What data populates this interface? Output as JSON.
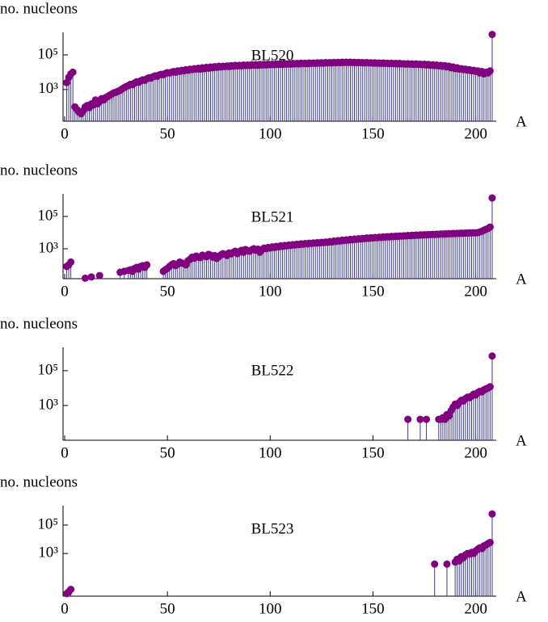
{
  "chart_data": [
    {
      "type": "stem",
      "title": "BL520",
      "y_label": "no. nucleons",
      "x_label": "A",
      "log_y": true,
      "color": "#800080",
      "stem_color": "#3a3a9a",
      "xlim": [
        0,
        210
      ],
      "xticks": [
        0,
        50,
        100,
        150,
        200
      ],
      "ylim": [
        15,
        2000000
      ],
      "yticks": [
        {
          "value": 1000,
          "label": "10³"
        },
        {
          "value": 100000,
          "label": "10⁵"
        }
      ],
      "x": [
        1,
        2,
        3,
        4,
        5,
        6,
        7,
        8,
        9,
        10,
        11,
        12,
        13,
        14,
        15,
        16,
        17,
        18,
        19,
        20,
        21,
        22,
        23,
        24,
        25,
        26,
        27,
        28,
        29,
        30,
        31,
        32,
        33,
        34,
        35,
        36,
        37,
        38,
        39,
        40,
        41,
        42,
        43,
        44,
        45,
        46,
        47,
        48,
        49,
        50,
        51,
        52,
        53,
        54,
        55,
        56,
        57,
        58,
        59,
        60,
        61,
        62,
        63,
        64,
        65,
        66,
        67,
        68,
        69,
        70,
        71,
        72,
        73,
        74,
        75,
        76,
        77,
        78,
        79,
        80,
        81,
        82,
        83,
        84,
        85,
        86,
        87,
        88,
        89,
        90,
        91,
        92,
        93,
        94,
        95,
        96,
        97,
        98,
        99,
        100,
        101,
        102,
        103,
        104,
        105,
        106,
        107,
        108,
        109,
        110,
        111,
        112,
        113,
        114,
        115,
        116,
        117,
        118,
        119,
        120,
        121,
        122,
        123,
        124,
        125,
        126,
        127,
        128,
        129,
        130,
        131,
        132,
        133,
        134,
        135,
        136,
        137,
        138,
        139,
        140,
        141,
        142,
        143,
        144,
        145,
        146,
        147,
        148,
        149,
        150,
        151,
        152,
        153,
        154,
        155,
        156,
        157,
        158,
        159,
        160,
        161,
        162,
        163,
        164,
        165,
        166,
        167,
        168,
        169,
        170,
        171,
        172,
        173,
        174,
        175,
        176,
        177,
        178,
        179,
        180,
        181,
        182,
        183,
        184,
        185,
        186,
        187,
        188,
        189,
        190,
        191,
        192,
        193,
        194,
        195,
        196,
        197,
        198,
        199,
        200,
        201,
        202,
        203,
        204,
        205,
        206,
        207,
        208
      ],
      "values": [
        2500,
        5000,
        8000,
        10000,
        100,
        70,
        50,
        40,
        60,
        100,
        120,
        90,
        150,
        130,
        250,
        150,
        200,
        300,
        250,
        350,
        400,
        480,
        550,
        650,
        700,
        800,
        900,
        1100,
        1300,
        1500,
        1700,
        2000,
        1900,
        2400,
        2800,
        2600,
        3200,
        3600,
        3400,
        4200,
        4800,
        4500,
        5500,
        6200,
        5800,
        7000,
        7600,
        7200,
        8500,
        9500,
        9000,
        10000,
        11000,
        10000,
        12000,
        11000,
        13000,
        12000,
        14000,
        13000,
        15000,
        14000,
        16000,
        15000,
        17000,
        15000,
        18000,
        16000,
        19000,
        17000,
        20000,
        18000,
        21000,
        19000,
        22000,
        20000,
        22000,
        21000,
        23000,
        21000,
        24000,
        22000,
        25000,
        23000,
        25000,
        23000,
        26000,
        24000,
        26000,
        24000,
        27000,
        25000,
        27000,
        25000,
        28000,
        26000,
        28000,
        26000,
        29000,
        27000,
        29000,
        27000,
        30000,
        28000,
        30000,
        28000,
        31000,
        29000,
        31000,
        29000,
        32000,
        30000,
        32000,
        30000,
        33000,
        31000,
        33000,
        31000,
        34000,
        32000,
        34000,
        32000,
        35000,
        33000,
        35000,
        33000,
        36000,
        34000,
        36000,
        34000,
        37000,
        35000,
        37000,
        35000,
        38000,
        36000,
        38000,
        36000,
        38000,
        36000,
        37000,
        35000,
        37000,
        35000,
        36000,
        34000,
        36000,
        34000,
        35000,
        33000,
        35000,
        33000,
        34000,
        32000,
        34000,
        32000,
        33000,
        31000,
        33000,
        31000,
        32000,
        30000,
        32000,
        30000,
        31000,
        29000,
        31000,
        29000,
        30000,
        28000,
        30000,
        28000,
        29000,
        27000,
        29000,
        26000,
        28000,
        25000,
        27000,
        24000,
        26000,
        23000,
        25000,
        22000,
        24000,
        20000,
        22000,
        18000,
        20000,
        16000,
        18000,
        15000,
        16000,
        14000,
        15000,
        13000,
        14000,
        12000,
        13000,
        11000,
        12000,
        9000,
        11000,
        8000,
        10000,
        9000,
        12000,
        1500000
      ]
    },
    {
      "type": "stem",
      "title": "BL521",
      "y_label": "no. nucleons",
      "x_label": "A",
      "log_y": true,
      "color": "#800080",
      "stem_color": "#3a3a9a",
      "xlim": [
        0,
        210
      ],
      "xticks": [
        0,
        50,
        100,
        150,
        200
      ],
      "ylim": [
        14,
        2500000
      ],
      "yticks": [
        {
          "value": 1000,
          "label": "10³"
        },
        {
          "value": 100000,
          "label": "10⁵"
        }
      ],
      "x": [
        1,
        2,
        3,
        10,
        13,
        17,
        27,
        29,
        31,
        32,
        33,
        34,
        35,
        36,
        37,
        38,
        39,
        40,
        48,
        49,
        50,
        51,
        52,
        53,
        54,
        55,
        56,
        57,
        58,
        59,
        60,
        61,
        62,
        63,
        64,
        65,
        66,
        67,
        68,
        69,
        70,
        71,
        72,
        73,
        74,
        75,
        76,
        77,
        78,
        79,
        80,
        81,
        82,
        83,
        84,
        85,
        86,
        87,
        88,
        89,
        90,
        91,
        92,
        93,
        94,
        95,
        96,
        97,
        98,
        99,
        100,
        101,
        102,
        103,
        104,
        105,
        106,
        107,
        108,
        109,
        110,
        111,
        112,
        113,
        114,
        115,
        116,
        117,
        118,
        119,
        120,
        121,
        122,
        123,
        124,
        125,
        126,
        127,
        128,
        129,
        130,
        131,
        132,
        133,
        134,
        135,
        136,
        137,
        138,
        139,
        140,
        141,
        142,
        143,
        144,
        145,
        146,
        147,
        148,
        149,
        150,
        151,
        152,
        153,
        154,
        155,
        156,
        157,
        158,
        159,
        160,
        161,
        162,
        163,
        164,
        165,
        166,
        167,
        168,
        169,
        170,
        171,
        172,
        173,
        174,
        175,
        176,
        177,
        178,
        179,
        180,
        181,
        182,
        183,
        184,
        185,
        186,
        187,
        188,
        189,
        190,
        191,
        192,
        193,
        194,
        195,
        196,
        197,
        198,
        199,
        200,
        201,
        202,
        203,
        204,
        205,
        206,
        207,
        208
      ],
      "values": [
        80,
        100,
        150,
        15,
        18,
        22,
        35,
        40,
        45,
        50,
        40,
        60,
        70,
        55,
        80,
        90,
        70,
        100,
        40,
        50,
        60,
        80,
        100,
        120,
        90,
        110,
        150,
        130,
        120,
        100,
        180,
        220,
        300,
        260,
        350,
        300,
        280,
        400,
        350,
        320,
        450,
        400,
        300,
        380,
        250,
        320,
        420,
        500,
        450,
        380,
        550,
        480,
        600,
        700,
        500,
        650,
        800,
        600,
        900,
        750,
        700,
        850,
        1000,
        800,
        950,
        600,
        900,
        1100,
        1000,
        1200,
        1100,
        1300,
        1200,
        1400,
        1300,
        1500,
        1400,
        1600,
        1500,
        1700,
        1600,
        1800,
        1700,
        1900,
        1800,
        2000,
        1900,
        2100,
        2000,
        2200,
        2100,
        2300,
        2200,
        2400,
        2300,
        2500,
        2400,
        2600,
        2500,
        2800,
        2600,
        3000,
        2800,
        3200,
        3000,
        3400,
        3200,
        3600,
        3400,
        3800,
        3600,
        4000,
        3800,
        4200,
        4000,
        4400,
        4200,
        4600,
        4400,
        4800,
        4600,
        5000,
        4800,
        5200,
        5000,
        5400,
        5200,
        5600,
        5400,
        5800,
        5600,
        6000,
        5800,
        6200,
        6000,
        6400,
        6200,
        6600,
        6400,
        6800,
        6600,
        7000,
        6800,
        7200,
        7000,
        7400,
        7200,
        7600,
        7400,
        7800,
        7600,
        8000,
        7800,
        8200,
        8000,
        8400,
        8200,
        8600,
        8400,
        8800,
        8600,
        9000,
        8800,
        9200,
        9000,
        9400,
        9200,
        9600,
        9400,
        9800,
        9600,
        10000,
        11000,
        12000,
        14000,
        16000,
        18000,
        22000,
        1400000
      ]
    },
    {
      "type": "stem",
      "title": "BL522",
      "y_label": "no. nucleons",
      "x_label": "A",
      "log_y": true,
      "color": "#800080",
      "stem_color": "#3a3a9a",
      "xlim": [
        0,
        210
      ],
      "xticks": [
        0,
        50,
        100,
        150,
        200
      ],
      "ylim": [
        10,
        2200000
      ],
      "yticks": [
        {
          "value": 1000,
          "label": "10³"
        },
        {
          "value": 100000,
          "label": "10⁵"
        }
      ],
      "x": [
        167,
        173,
        176,
        182,
        183,
        184,
        185,
        186,
        187,
        188,
        189,
        190,
        191,
        192,
        193,
        194,
        195,
        196,
        197,
        198,
        199,
        200,
        201,
        202,
        203,
        204,
        205,
        206,
        207,
        208
      ],
      "values": [
        160,
        160,
        160,
        160,
        160,
        200,
        160,
        300,
        250,
        500,
        800,
        1200,
        1000,
        1500,
        2000,
        1800,
        2500,
        3000,
        2800,
        3500,
        4500,
        4000,
        5500,
        6500,
        6000,
        8000,
        9000,
        10000,
        12000,
        700000
      ]
    },
    {
      "type": "stem",
      "title": "BL523",
      "y_label": "no. nucleons",
      "x_label": "A",
      "log_y": true,
      "color": "#800080",
      "stem_color": "#3a3a9a",
      "xlim": [
        0,
        210
      ],
      "xticks": [
        0,
        50,
        100,
        150,
        200
      ],
      "ylim": [
        1,
        2300000
      ],
      "yticks": [
        {
          "value": 1000,
          "label": "10³"
        },
        {
          "value": 100000,
          "label": "10⁵"
        }
      ],
      "x": [
        1,
        2,
        3,
        180,
        186,
        190,
        191,
        192,
        193,
        194,
        195,
        196,
        197,
        198,
        199,
        200,
        201,
        202,
        203,
        204,
        205,
        206,
        207,
        208
      ],
      "values": [
        1.5,
        2,
        3,
        180,
        180,
        250,
        400,
        300,
        600,
        500,
        800,
        1000,
        900,
        1200,
        1000,
        1500,
        2000,
        2500,
        2200,
        3500,
        4000,
        5000,
        6000,
        600000
      ]
    }
  ]
}
